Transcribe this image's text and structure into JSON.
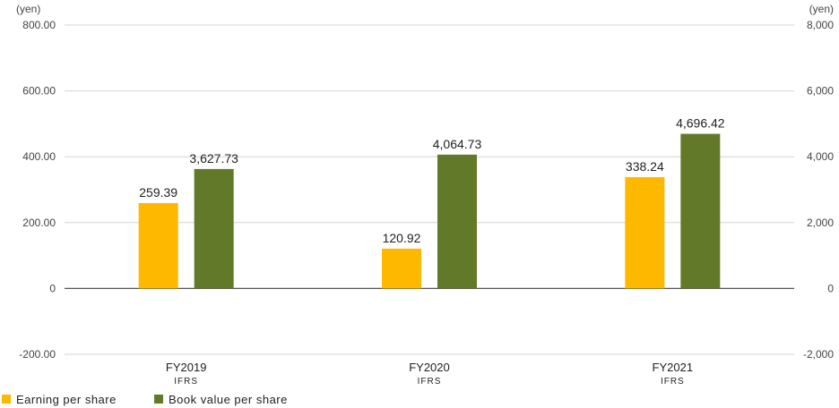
{
  "chart_data": {
    "type": "bar",
    "categories": [
      "FY2019",
      "FY2020",
      "FY2021"
    ],
    "subcategories": [
      "IFRS",
      "IFRS",
      "IFRS"
    ],
    "series": [
      {
        "name": "Earning per share",
        "axis": "left",
        "color": "#FFB800",
        "values": [
          259.39,
          120.92,
          338.24
        ],
        "labels": [
          "259.39",
          "120.92",
          "338.24"
        ]
      },
      {
        "name": "Book value per share",
        "axis": "right",
        "color": "#63792A",
        "values": [
          3627.73,
          4064.73,
          4696.42
        ],
        "labels": [
          "3,627.73",
          "4,064.73",
          "4,696.42"
        ]
      }
    ],
    "left_axis": {
      "unit": "(yen)",
      "ylim": [
        -200,
        800
      ],
      "ticks": [
        800,
        600,
        400,
        200,
        0,
        -200
      ],
      "tick_labels": [
        "800.00",
        "600.00",
        "400.00",
        "200.00",
        "0",
        "-200.00"
      ]
    },
    "right_axis": {
      "unit": "(yen)",
      "ylim": [
        -2000,
        8000
      ],
      "ticks": [
        8000,
        6000,
        4000,
        2000,
        0,
        -2000
      ],
      "tick_labels": [
        "8,000",
        "6,000",
        "4,000",
        "2,000",
        "0",
        "-2,000"
      ]
    },
    "grid": true,
    "legend_position": "bottom-left"
  }
}
